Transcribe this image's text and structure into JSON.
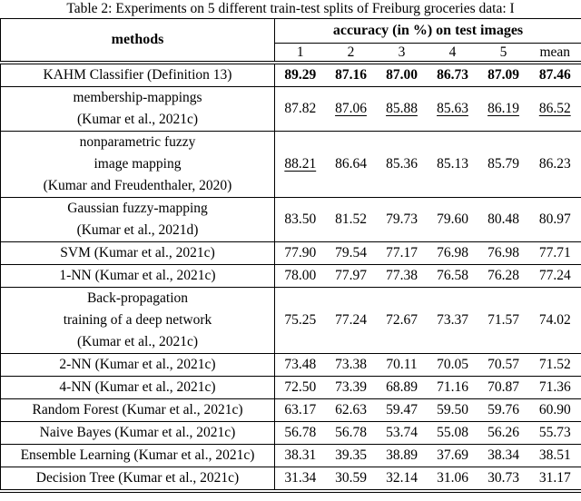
{
  "caption": "Table 2: Experiments on 5 different train-test splits of Freiburg groceries data: I",
  "table": {
    "col_header_left": "methods",
    "col_header_right": "accuracy (in %) on test images",
    "sub_headers": [
      "1",
      "2",
      "3",
      "4",
      "5",
      "mean"
    ],
    "rows": [
      {
        "method_lines": [
          "KAHM Classifier (Definition 13)"
        ],
        "values": [
          "89.29",
          "87.16",
          "87.00",
          "86.73",
          "87.09",
          "87.46"
        ],
        "bold": true,
        "underlined": [
          false,
          false,
          false,
          false,
          false,
          false
        ]
      },
      {
        "method_lines": [
          "membership-mappings",
          "(Kumar et al., 2021c)"
        ],
        "values": [
          "87.82",
          "87.06",
          "85.88",
          "85.63",
          "86.19",
          "86.52"
        ],
        "bold": false,
        "underlined": [
          false,
          true,
          true,
          true,
          true,
          true
        ]
      },
      {
        "method_lines": [
          "nonparametric fuzzy",
          "image mapping",
          "(Kumar and Freudenthaler, 2020)"
        ],
        "values": [
          "88.21",
          "86.64",
          "85.36",
          "85.13",
          "85.79",
          "86.23"
        ],
        "bold": false,
        "underlined": [
          true,
          false,
          false,
          false,
          false,
          false
        ]
      },
      {
        "method_lines": [
          "Gaussian fuzzy-mapping",
          "(Kumar et al., 2021d)"
        ],
        "values": [
          "83.50",
          "81.52",
          "79.73",
          "79.60",
          "80.48",
          "80.97"
        ],
        "bold": false,
        "underlined": [
          false,
          false,
          false,
          false,
          false,
          false
        ]
      },
      {
        "method_lines": [
          "SVM (Kumar et al., 2021c)"
        ],
        "values": [
          "77.90",
          "79.54",
          "77.17",
          "76.98",
          "76.98",
          "77.71"
        ],
        "bold": false,
        "underlined": [
          false,
          false,
          false,
          false,
          false,
          false
        ]
      },
      {
        "method_lines": [
          "1-NN (Kumar et al., 2021c)"
        ],
        "values": [
          "78.00",
          "77.97",
          "77.38",
          "76.58",
          "76.28",
          "77.24"
        ],
        "bold": false,
        "underlined": [
          false,
          false,
          false,
          false,
          false,
          false
        ]
      },
      {
        "method_lines": [
          "Back-propagation",
          "training of a deep network",
          "(Kumar et al., 2021c)"
        ],
        "values": [
          "75.25",
          "77.24",
          "72.67",
          "73.37",
          "71.57",
          "74.02"
        ],
        "bold": false,
        "underlined": [
          false,
          false,
          false,
          false,
          false,
          false
        ]
      },
      {
        "method_lines": [
          "2-NN (Kumar et al., 2021c)"
        ],
        "values": [
          "73.48",
          "73.38",
          "70.11",
          "70.05",
          "70.57",
          "71.52"
        ],
        "bold": false,
        "underlined": [
          false,
          false,
          false,
          false,
          false,
          false
        ]
      },
      {
        "method_lines": [
          "4-NN (Kumar et al., 2021c)"
        ],
        "values": [
          "72.50",
          "73.39",
          "68.89",
          "71.16",
          "70.87",
          "71.36"
        ],
        "bold": false,
        "underlined": [
          false,
          false,
          false,
          false,
          false,
          false
        ]
      },
      {
        "method_lines": [
          "Random Forest (Kumar et al., 2021c)"
        ],
        "values": [
          "63.17",
          "62.63",
          "59.47",
          "59.50",
          "59.76",
          "60.90"
        ],
        "bold": false,
        "underlined": [
          false,
          false,
          false,
          false,
          false,
          false
        ]
      },
      {
        "method_lines": [
          "Naive Bayes (Kumar et al., 2021c)"
        ],
        "values": [
          "56.78",
          "56.78",
          "53.74",
          "55.08",
          "56.26",
          "55.73"
        ],
        "bold": false,
        "underlined": [
          false,
          false,
          false,
          false,
          false,
          false
        ]
      },
      {
        "method_lines": [
          "Ensemble Learning (Kumar et al., 2021c)"
        ],
        "values": [
          "38.31",
          "39.35",
          "38.89",
          "37.69",
          "38.34",
          "38.51"
        ],
        "bold": false,
        "underlined": [
          false,
          false,
          false,
          false,
          false,
          false
        ]
      },
      {
        "method_lines": [
          "Decision Tree (Kumar et al., 2021c)"
        ],
        "values": [
          "31.34",
          "30.59",
          "32.14",
          "31.06",
          "30.73",
          "31.17"
        ],
        "bold": false,
        "underlined": [
          false,
          false,
          false,
          false,
          false,
          false
        ]
      }
    ]
  }
}
